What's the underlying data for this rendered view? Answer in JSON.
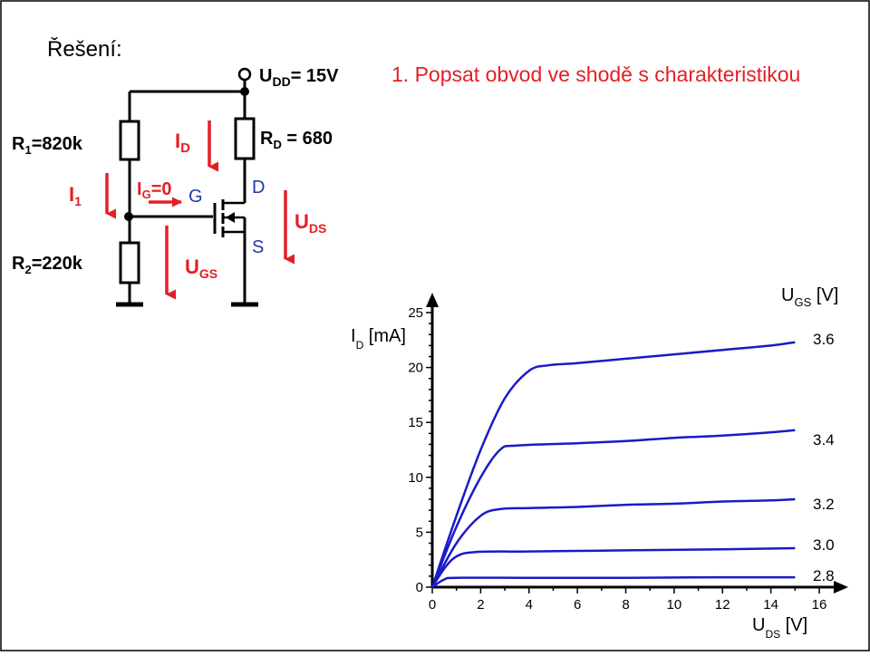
{
  "heading": "Řešení:",
  "task": "1. Popsat obvod ve shodě s charakteristikou",
  "circuit": {
    "supply": {
      "main": "U",
      "sub": "DD",
      "rest": "= 15V"
    },
    "r1": {
      "main": "R",
      "sub": "1",
      "rest": "=820k"
    },
    "r2": {
      "main": "R",
      "sub": "2",
      "rest": "=220k"
    },
    "rd": {
      "main": "R",
      "sub": "D",
      "rest": " = 680"
    },
    "id": {
      "main": "I",
      "sub": "D"
    },
    "i1": {
      "main": "I",
      "sub": "1"
    },
    "ig": {
      "main": "I",
      "sub": "G",
      "rest": "=0"
    },
    "ugs": {
      "main": "U",
      "sub": "GS"
    },
    "uds": {
      "main": "U",
      "sub": "DS"
    },
    "gate": "G",
    "drain": "D",
    "source": "S"
  },
  "colors": {
    "arrow": "#e41e26",
    "terminal_label": "#1f3aa8",
    "curve": "#1a1ac8",
    "wire": "#000000",
    "task": "#e41e26"
  },
  "chart_data": {
    "type": "line",
    "xlabel": {
      "main": "U",
      "sub": "DS",
      "rest": " [V]"
    },
    "ylabel": {
      "main": "I",
      "sub": "D",
      "rest": " [mA]"
    },
    "legend_title": {
      "main": "U",
      "sub": "GS",
      "rest": " [V]"
    },
    "xlim": [
      0,
      16
    ],
    "ylim": [
      0,
      25
    ],
    "x_ticks": [
      "0",
      "2",
      "4",
      "6",
      "8",
      "10",
      "12",
      "14",
      "16"
    ],
    "y_ticks": [
      "0",
      "5",
      "10",
      "15",
      "20",
      "25"
    ],
    "grid": false,
    "series": [
      {
        "name": "3.6",
        "points": [
          [
            0,
            0
          ],
          [
            1,
            6.5
          ],
          [
            2,
            12.5
          ],
          [
            3,
            17.2
          ],
          [
            4,
            19.7
          ],
          [
            4.8,
            20.2
          ],
          [
            6,
            20.4
          ],
          [
            8,
            20.8
          ],
          [
            10,
            21.2
          ],
          [
            12,
            21.6
          ],
          [
            14,
            22.0
          ],
          [
            15,
            22.3
          ]
        ]
      },
      {
        "name": "3.4",
        "points": [
          [
            0,
            0
          ],
          [
            1,
            5.5
          ],
          [
            2,
            10
          ],
          [
            2.8,
            12.5
          ],
          [
            3.5,
            12.9
          ],
          [
            6,
            13.1
          ],
          [
            8,
            13.3
          ],
          [
            10,
            13.6
          ],
          [
            12,
            13.8
          ],
          [
            14,
            14.1
          ],
          [
            15,
            14.3
          ]
        ]
      },
      {
        "name": "3.2",
        "points": [
          [
            0,
            0
          ],
          [
            1,
            4.0
          ],
          [
            2,
            6.5
          ],
          [
            2.8,
            7.1
          ],
          [
            4,
            7.2
          ],
          [
            6,
            7.3
          ],
          [
            8,
            7.5
          ],
          [
            10,
            7.6
          ],
          [
            12,
            7.8
          ],
          [
            14,
            7.9
          ],
          [
            15,
            8.0
          ]
        ]
      },
      {
        "name": "3.0",
        "points": [
          [
            0,
            0
          ],
          [
            0.5,
            1.7
          ],
          [
            1,
            2.8
          ],
          [
            1.8,
            3.2
          ],
          [
            4,
            3.25
          ],
          [
            8,
            3.35
          ],
          [
            12,
            3.45
          ],
          [
            15,
            3.55
          ]
        ]
      },
      {
        "name": "2.8",
        "points": [
          [
            0,
            0
          ],
          [
            0.5,
            0.7
          ],
          [
            1,
            0.85
          ],
          [
            4,
            0.85
          ],
          [
            8,
            0.85
          ],
          [
            12,
            0.9
          ],
          [
            15,
            0.9
          ]
        ]
      }
    ]
  }
}
